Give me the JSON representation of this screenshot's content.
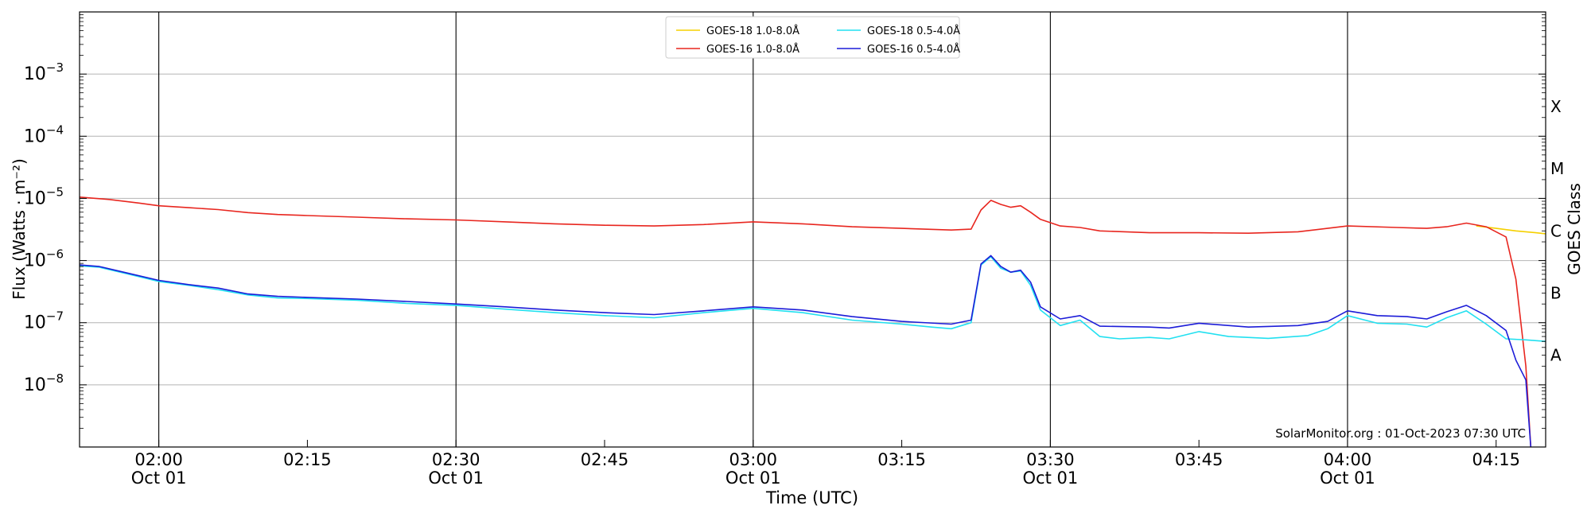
{
  "chart_data": {
    "type": "line",
    "title": "",
    "xlabel": "Time (UTC)",
    "ylabel": "Flux (Watts · m⁻²)",
    "right_ylabel": "GOES Class",
    "yscale": "log",
    "ylim": [
      1e-09,
      0.01
    ],
    "xlim": [
      "01:52",
      "04:20"
    ],
    "grid": "horizontal at decades, vertical lines at half-hours",
    "legend_placement": "top-center",
    "credit": "SolarMonitor.org : 01-Oct-2023 07:30 UTC",
    "y_ticks": [
      {
        "value": 1e-08,
        "label_base": "10",
        "label_exp": "−8"
      },
      {
        "value": 1e-07,
        "label_base": "10",
        "label_exp": "−7"
      },
      {
        "value": 1e-06,
        "label_base": "10",
        "label_exp": "−6"
      },
      {
        "value": 1e-05,
        "label_base": "10",
        "label_exp": "−5"
      },
      {
        "value": 0.0001,
        "label_base": "10",
        "label_exp": "−4"
      },
      {
        "value": 0.001,
        "label_base": "10",
        "label_exp": "−3"
      }
    ],
    "x_ticks": [
      {
        "time": "02:00",
        "label": "02:00",
        "sublabel": "Oct 01"
      },
      {
        "time": "02:15",
        "label": "02:15",
        "sublabel": ""
      },
      {
        "time": "02:30",
        "label": "02:30",
        "sublabel": "Oct 01"
      },
      {
        "time": "02:45",
        "label": "02:45",
        "sublabel": ""
      },
      {
        "time": "03:00",
        "label": "03:00",
        "sublabel": "Oct 01"
      },
      {
        "time": "03:15",
        "label": "03:15",
        "sublabel": ""
      },
      {
        "time": "03:30",
        "label": "03:30",
        "sublabel": "Oct 01"
      },
      {
        "time": "03:45",
        "label": "03:45",
        "sublabel": ""
      },
      {
        "time": "04:00",
        "label": "04:00",
        "sublabel": "Oct 01"
      },
      {
        "time": "04:15",
        "label": "04:15",
        "sublabel": ""
      }
    ],
    "class_labels": [
      {
        "label": "X",
        "value": 0.0003
      },
      {
        "label": "M",
        "value": 3e-05
      },
      {
        "label": "C",
        "value": 3e-06
      },
      {
        "label": "B",
        "value": 3e-07
      },
      {
        "label": "A",
        "value": 3e-08
      }
    ],
    "series": [
      {
        "name": "GOES-18 1.0-8.0Å",
        "color": "#f5d000",
        "points": [
          [
            "04:13",
            3.6e-06
          ],
          [
            "04:15",
            3.3e-06
          ],
          [
            "04:17",
            3e-06
          ],
          [
            "04:19",
            2.8e-06
          ],
          [
            "04:20",
            2.7e-06
          ]
        ]
      },
      {
        "name": "GOES-16 1.0-8.0Å",
        "color": "#e8261f",
        "points": [
          [
            "01:52",
            1.05e-05
          ],
          [
            "01:55",
            9.6e-06
          ],
          [
            "01:58",
            8.4e-06
          ],
          [
            "02:00",
            7.6e-06
          ],
          [
            "02:03",
            7.1e-06
          ],
          [
            "02:06",
            6.6e-06
          ],
          [
            "02:09",
            5.9e-06
          ],
          [
            "02:12",
            5.5e-06
          ],
          [
            "02:15",
            5.3e-06
          ],
          [
            "02:20",
            5e-06
          ],
          [
            "02:25",
            4.7e-06
          ],
          [
            "02:30",
            4.5e-06
          ],
          [
            "02:35",
            4.2e-06
          ],
          [
            "02:40",
            3.9e-06
          ],
          [
            "02:45",
            3.7e-06
          ],
          [
            "02:50",
            3.6e-06
          ],
          [
            "02:55",
            3.8e-06
          ],
          [
            "03:00",
            4.2e-06
          ],
          [
            "03:05",
            3.9e-06
          ],
          [
            "03:10",
            3.5e-06
          ],
          [
            "03:15",
            3.3e-06
          ],
          [
            "03:20",
            3.1e-06
          ],
          [
            "03:22",
            3.2e-06
          ],
          [
            "03:23",
            6.5e-06
          ],
          [
            "03:24",
            9.3e-06
          ],
          [
            "03:25",
            8e-06
          ],
          [
            "03:26",
            7.2e-06
          ],
          [
            "03:27",
            7.6e-06
          ],
          [
            "03:28",
            6e-06
          ],
          [
            "03:29",
            4.6e-06
          ],
          [
            "03:31",
            3.6e-06
          ],
          [
            "03:33",
            3.4e-06
          ],
          [
            "03:35",
            3e-06
          ],
          [
            "03:40",
            2.8e-06
          ],
          [
            "03:45",
            2.8e-06
          ],
          [
            "03:50",
            2.75e-06
          ],
          [
            "03:55",
            2.9e-06
          ],
          [
            "04:00",
            3.6e-06
          ],
          [
            "04:05",
            3.4e-06
          ],
          [
            "04:08",
            3.3e-06
          ],
          [
            "04:10",
            3.5e-06
          ],
          [
            "04:12",
            4e-06
          ],
          [
            "04:14",
            3.5e-06
          ],
          [
            "04:16",
            2.4e-06
          ],
          [
            "04:17",
            5e-07
          ],
          [
            "04:18",
            2e-08
          ],
          [
            "04:18.5",
            1e-09
          ]
        ]
      },
      {
        "name": "GOES-18 0.5-4.0Å",
        "color": "#22e0f0",
        "points": [
          [
            "01:52",
            8.2e-07
          ],
          [
            "01:54",
            7.8e-07
          ],
          [
            "01:57",
            6e-07
          ],
          [
            "02:00",
            4.6e-07
          ],
          [
            "02:03",
            4e-07
          ],
          [
            "02:06",
            3.4e-07
          ],
          [
            "02:09",
            2.8e-07
          ],
          [
            "02:12",
            2.5e-07
          ],
          [
            "02:15",
            2.45e-07
          ],
          [
            "02:20",
            2.3e-07
          ],
          [
            "02:25",
            2.05e-07
          ],
          [
            "02:30",
            1.9e-07
          ],
          [
            "02:35",
            1.65e-07
          ],
          [
            "02:40",
            1.45e-07
          ],
          [
            "02:45",
            1.3e-07
          ],
          [
            "02:50",
            1.2e-07
          ],
          [
            "02:55",
            1.45e-07
          ],
          [
            "03:00",
            1.7e-07
          ],
          [
            "03:05",
            1.45e-07
          ],
          [
            "03:10",
            1.1e-07
          ],
          [
            "03:15",
            9.5e-08
          ],
          [
            "03:18",
            8.5e-08
          ],
          [
            "03:20",
            8e-08
          ],
          [
            "03:22",
            1e-07
          ],
          [
            "03:23",
            8.5e-07
          ],
          [
            "03:24",
            1.15e-06
          ],
          [
            "03:25",
            7.5e-07
          ],
          [
            "03:26",
            6.5e-07
          ],
          [
            "03:27",
            6.8e-07
          ],
          [
            "03:28",
            4e-07
          ],
          [
            "03:29",
            1.6e-07
          ],
          [
            "03:31",
            9e-08
          ],
          [
            "03:33",
            1.1e-07
          ],
          [
            "03:35",
            6e-08
          ],
          [
            "03:37",
            5.5e-08
          ],
          [
            "03:40",
            5.8e-08
          ],
          [
            "03:42",
            5.5e-08
          ],
          [
            "03:45",
            7.2e-08
          ],
          [
            "03:48",
            6e-08
          ],
          [
            "03:52",
            5.6e-08
          ],
          [
            "03:56",
            6.2e-08
          ],
          [
            "03:58",
            8e-08
          ],
          [
            "04:00",
            1.3e-07
          ],
          [
            "04:03",
            9.8e-08
          ],
          [
            "04:06",
            9.5e-08
          ],
          [
            "04:08",
            8.5e-08
          ],
          [
            "04:10",
            1.2e-07
          ],
          [
            "04:12",
            1.55e-07
          ],
          [
            "04:14",
            9.5e-08
          ],
          [
            "04:16",
            5.5e-08
          ],
          [
            "04:18",
            5.3e-08
          ],
          [
            "04:20",
            5e-08
          ]
        ]
      },
      {
        "name": "GOES-16 0.5-4.0Å",
        "color": "#1c1cd8",
        "points": [
          [
            "01:52",
            8.5e-07
          ],
          [
            "01:54",
            8e-07
          ],
          [
            "01:57",
            6.2e-07
          ],
          [
            "02:00",
            4.8e-07
          ],
          [
            "02:03",
            4.1e-07
          ],
          [
            "02:06",
            3.6e-07
          ],
          [
            "02:09",
            2.9e-07
          ],
          [
            "02:12",
            2.65e-07
          ],
          [
            "02:15",
            2.55e-07
          ],
          [
            "02:20",
            2.4e-07
          ],
          [
            "02:25",
            2.2e-07
          ],
          [
            "02:30",
            2e-07
          ],
          [
            "02:35",
            1.8e-07
          ],
          [
            "02:40",
            1.6e-07
          ],
          [
            "02:45",
            1.45e-07
          ],
          [
            "02:50",
            1.35e-07
          ],
          [
            "02:55",
            1.55e-07
          ],
          [
            "03:00",
            1.8e-07
          ],
          [
            "03:05",
            1.6e-07
          ],
          [
            "03:10",
            1.25e-07
          ],
          [
            "03:15",
            1.05e-07
          ],
          [
            "03:20",
            9.5e-08
          ],
          [
            "03:22",
            1.1e-07
          ],
          [
            "03:23",
            8.8e-07
          ],
          [
            "03:24",
            1.2e-06
          ],
          [
            "03:25",
            8e-07
          ],
          [
            "03:26",
            6.5e-07
          ],
          [
            "03:27",
            7e-07
          ],
          [
            "03:28",
            4.5e-07
          ],
          [
            "03:29",
            1.8e-07
          ],
          [
            "03:31",
            1.15e-07
          ],
          [
            "03:33",
            1.3e-07
          ],
          [
            "03:35",
            8.8e-08
          ],
          [
            "03:40",
            8.5e-08
          ],
          [
            "03:42",
            8.2e-08
          ],
          [
            "03:45",
            9.8e-08
          ],
          [
            "03:50",
            8.5e-08
          ],
          [
            "03:55",
            9e-08
          ],
          [
            "03:58",
            1.05e-07
          ],
          [
            "04:00",
            1.55e-07
          ],
          [
            "04:03",
            1.3e-07
          ],
          [
            "04:06",
            1.25e-07
          ],
          [
            "04:08",
            1.15e-07
          ],
          [
            "04:10",
            1.5e-07
          ],
          [
            "04:12",
            1.9e-07
          ],
          [
            "04:14",
            1.3e-07
          ],
          [
            "04:16",
            7.5e-08
          ],
          [
            "04:17",
            2.5e-08
          ],
          [
            "04:18",
            1.2e-08
          ],
          [
            "04:18.5",
            1e-09
          ]
        ]
      }
    ]
  }
}
